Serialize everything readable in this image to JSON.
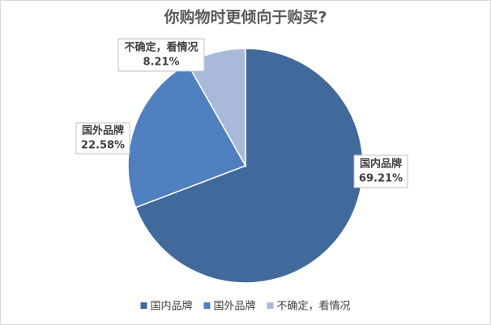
{
  "chart_data": {
    "type": "pie",
    "title": "你购物时更倾向于购买?",
    "categories": [
      "国内品牌",
      "国外品牌",
      "不确定，看情况"
    ],
    "values": [
      69.21,
      22.58,
      8.21
    ],
    "value_labels": [
      "69.21%",
      "22.58%",
      "8.21%"
    ],
    "colors": [
      "#41699c",
      "#4f7fbf",
      "#a9b9d9"
    ],
    "legend": "bottom"
  }
}
